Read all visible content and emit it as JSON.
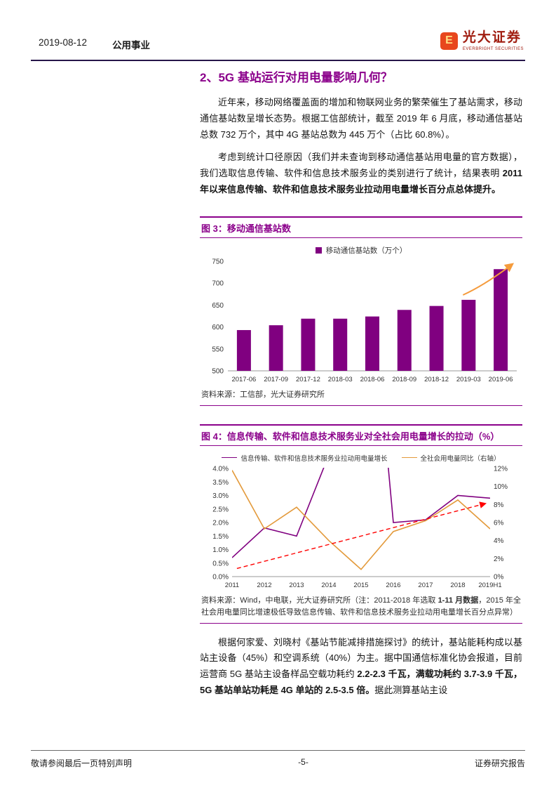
{
  "header": {
    "date": "2019-08-12",
    "category": "公用事业",
    "logo_mark_letter": "E",
    "logo_cn": "光大证券",
    "logo_en": "EVERBRIGHT SECURITIES"
  },
  "section_title": "2、5G 基站运行对用电量影响几何？",
  "paragraphs": {
    "p1": "近年来，移动网络覆盖面的增加和物联网业务的繁荣催生了基站需求，移动通信基站数呈增长态势。根据工信部统计，截至 2019 年 6 月底，移动通信基站总数 732 万个，其中 4G 基站总数为 445 万个（占比 60.8%）。",
    "p2_rich": [
      {
        "t": "考虑到统计口径原因（我们并未查询到移动通信基站用电量的官方数据），我们选取信息传输、软件和信息技术服务业的类别进行了统计，结果表明 "
      },
      {
        "t": "2011 年以来信息传输、软件和信息技术服务业拉动用电量增长百分点总体提升。",
        "b": true
      }
    ],
    "p3_rich": [
      {
        "t": "根据何家爱、刘晓村《基站节能减排措施探讨》的统计，基站能耗构成以基站主设备（45%）和空调系统（40%）为主。据中国通信标准化协会报道，目前运营商 5G 基站主设备样品空载功耗约 "
      },
      {
        "t": "2.2-2.3 千瓦，满载功耗约 3.7-3.9 千瓦，5G 基站单站功耗是 4G 单站的 2.5-3.5 倍。",
        "b": true
      },
      {
        "t": "据此测算基站主设"
      }
    ]
  },
  "figure3": {
    "title": "图 3：移动通信基站数",
    "source": "资料来源：工信部，光大证券研究所"
  },
  "figure4": {
    "title": "图 4：信息传输、软件和信息技术服务业对全社会用电量增长的拉动（%）",
    "source_rich": [
      {
        "t": "资料来源：Wind，中电联，光大证券研究所（注：2011-2018 年选取 "
      },
      {
        "t": "1-11 月数据",
        "b": true
      },
      {
        "t": "，2015 年全社会用电量同比增速极低导致信息传输、软件和信息技术服务业拉动用电量增长百分点异常）"
      }
    ]
  },
  "footer": {
    "left": "敬请参阅最后一页特别声明",
    "page_num": "-5-",
    "right": "证券研究报告"
  },
  "colors": {
    "brand_purple": "#8B008B",
    "bar_purple": "#800080",
    "line_orange": "#E39A3B",
    "trend_red": "#FF0000",
    "logo_red": "#A01D10",
    "header_rule": "#26164A"
  },
  "chart_data": [
    {
      "id": "figure3",
      "type": "bar",
      "title": "移动通信基站数",
      "legend": "移动通信基站数（万个）",
      "legend_position": "top",
      "categories": [
        "2017-06",
        "2017-09",
        "2017-12",
        "2018-03",
        "2018-06",
        "2018-09",
        "2018-12",
        "2019-03",
        "2019-06"
      ],
      "values": [
        593,
        604,
        619,
        619,
        624,
        639,
        648,
        662,
        732
      ],
      "ylim": [
        500,
        750
      ],
      "yticks": [
        500,
        550,
        600,
        650,
        700,
        750
      ],
      "bar_color": "#800080",
      "grid": false,
      "annotation": {
        "type": "hand-drawn-up-arrow",
        "color": "#F59B3C",
        "meaning": "growth accelerating"
      }
    },
    {
      "id": "figure4",
      "type": "line",
      "title": "信息传输、软件和信息技术服务业对全社会用电量增长的拉动（%）",
      "legend_position": "top",
      "categories": [
        "2011",
        "2012",
        "2013",
        "2014",
        "2015",
        "2016",
        "2017",
        "2018",
        "2019H1"
      ],
      "series": [
        {
          "name": "信息传输、软件和信息技术服务业拉动用电量增长",
          "axis": "left",
          "color": "#800080",
          "values": [
            0.7,
            1.8,
            1.5,
            4.5,
            15,
            2.0,
            2.1,
            3.0,
            2.9
          ],
          "offscale_note": "2014 与 2015 数值超出左轴上限 4.0%，图中被截断（2015 年异常）"
        },
        {
          "name": "全社会用电量同比（右轴）",
          "axis": "right",
          "color": "#E39A3B",
          "values": [
            11.8,
            5.3,
            7.7,
            4.0,
            0.8,
            5.0,
            6.2,
            8.5,
            5.3
          ]
        }
      ],
      "left_axis": {
        "lim": [
          0,
          4
        ],
        "ticks": [
          0,
          0.5,
          1.0,
          1.5,
          2.0,
          2.5,
          3.0,
          3.5,
          4.0
        ],
        "tick_labels": [
          "0.0%",
          "0.5%",
          "1.0%",
          "1.5%",
          "2.0%",
          "2.5%",
          "3.0%",
          "3.5%",
          "4.0%"
        ]
      },
      "right_axis": {
        "lim": [
          0,
          12
        ],
        "ticks": [
          0,
          2,
          4,
          6,
          8,
          10,
          12
        ],
        "tick_labels": [
          "0%",
          "2%",
          "4%",
          "6%",
          "8%",
          "10%",
          "12%"
        ]
      },
      "grid": false,
      "trend_arrow": {
        "color": "#FF0000",
        "style": "dashed",
        "from": {
          "x_index": 0.15,
          "y_left": 0.3
        },
        "to": {
          "x_index": 7.85,
          "y_left": 2.7
        }
      }
    }
  ]
}
